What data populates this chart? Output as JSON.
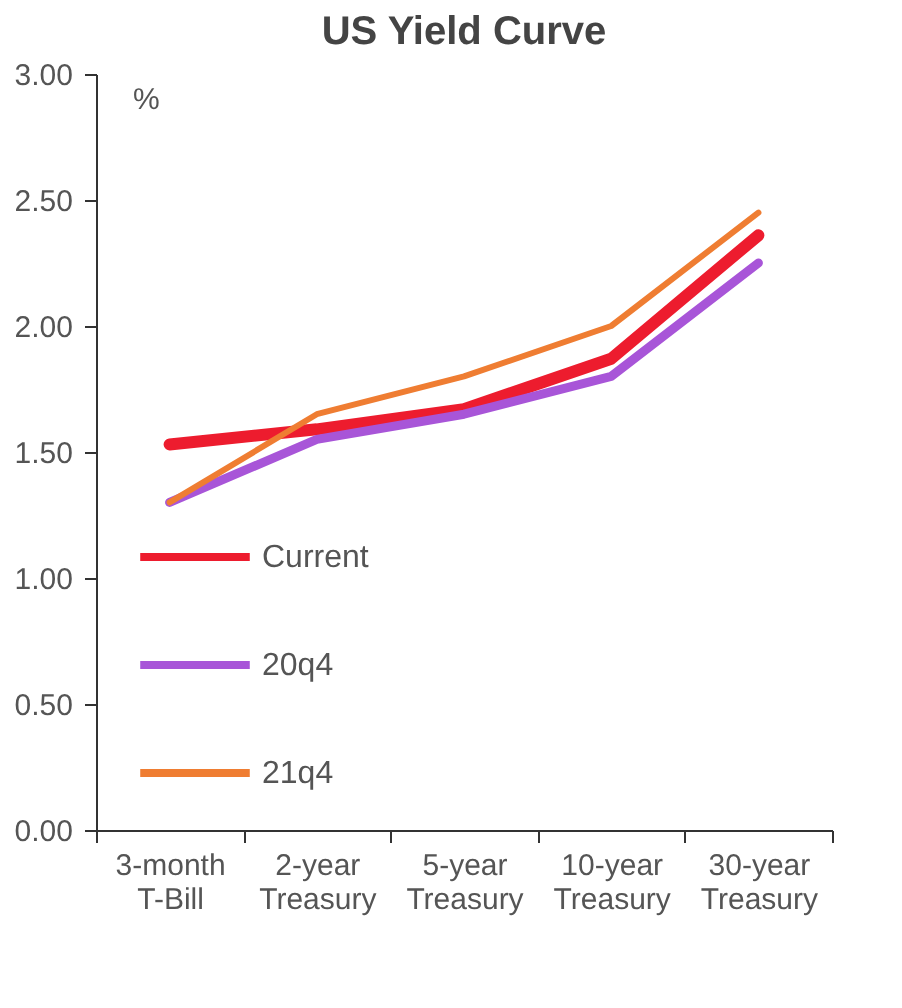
{
  "chart_data": {
    "type": "line",
    "title": "US Yield Curve",
    "ylabel": "%",
    "categories": [
      "3-month T-Bill",
      "2-year Treasury",
      "5-year Treasury",
      "10-year Treasury",
      "30-year Treasury"
    ],
    "series": [
      {
        "name": "Current",
        "color": "#ed1c2e",
        "values": [
          1.53,
          1.59,
          1.67,
          1.87,
          2.36
        ]
      },
      {
        "name": "20q4",
        "color": "#a855d8",
        "values": [
          1.3,
          1.55,
          1.65,
          1.8,
          2.25
        ]
      },
      {
        "name": "21q4",
        "color": "#ef7d32",
        "values": [
          1.3,
          1.65,
          1.8,
          2.0,
          2.45
        ]
      }
    ],
    "ylim": [
      0,
      3
    ],
    "yticks": [
      {
        "value": 0,
        "label": "0.00"
      },
      {
        "value": 0.5,
        "label": "0.50"
      },
      {
        "value": 1,
        "label": "1.00"
      },
      {
        "value": 1.5,
        "label": "1.50"
      },
      {
        "value": 2,
        "label": "2.00"
      },
      {
        "value": 2.5,
        "label": "2.50"
      },
      {
        "value": 3,
        "label": "3.00"
      }
    ],
    "grid": false,
    "legend": "bottom left",
    "marker": "none",
    "line_style": "solid"
  }
}
